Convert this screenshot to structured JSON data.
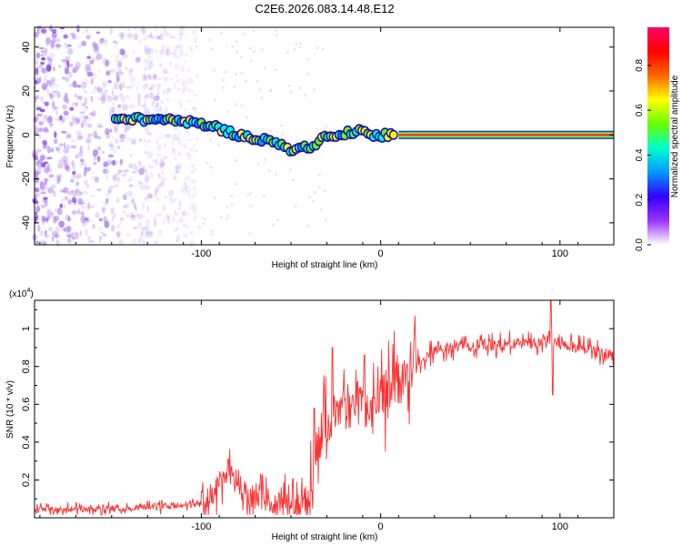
{
  "title": "C2E6.2026.083.14.48.E12",
  "chart_data": [
    {
      "type": "heatmap",
      "id": "spectrogram",
      "xlabel": "Height of straight line (km)",
      "ylabel": "Frequency (Hz)",
      "xlim": [
        -193,
        130
      ],
      "ylim": [
        -50,
        49
      ],
      "xticks": [
        -100,
        0,
        100
      ],
      "xtick_labels": [
        "-100",
        "0",
        "100"
      ],
      "yticks": [
        -40,
        -20,
        0,
        20,
        40
      ],
      "ytick_labels": [
        "-40",
        "-20",
        "0",
        "20",
        "40"
      ],
      "track": {
        "x": [
          -148,
          -140,
          -130,
          -120,
          -110,
          -100,
          -90,
          -80,
          -70,
          -60,
          -55,
          -50,
          -45,
          -40,
          -35,
          -30,
          -25,
          -20,
          -15,
          -10,
          -5,
          0,
          5,
          10,
          130
        ],
        "y": [
          8,
          7.5,
          7,
          7,
          6,
          5,
          3,
          0,
          -2,
          -3,
          -4,
          -7,
          -5,
          -6,
          -3,
          -1,
          0,
          1,
          1,
          2,
          0,
          0,
          0,
          0,
          0
        ]
      },
      "steady_line": {
        "x_start": 10,
        "x_end": 130,
        "freq": 0
      },
      "colorbar": {
        "label": "Normalized spectral amplitude",
        "range": [
          0,
          0.97
        ],
        "ticks": [
          0,
          0.2,
          0.4,
          0.6,
          0.8
        ],
        "tick_labels": [
          "0.0",
          "0.2",
          "0.4",
          "0.6",
          "0.8"
        ],
        "colors": [
          "#ffffff",
          "#9933ff",
          "#3300ff",
          "#0099ff",
          "#00ffcc",
          "#66ff00",
          "#ffff00",
          "#ff6600",
          "#ff0000",
          "#ff0066"
        ]
      }
    },
    {
      "type": "line",
      "id": "snr",
      "xlabel": "Height of straight line (km)",
      "ylabel": "SNR (10 * v/v)",
      "y_multiplier": "(x10",
      "y_multiplier_exp": "4",
      "y_multiplier_close": ")",
      "xlim": [
        -193,
        130
      ],
      "ylim": [
        0,
        1.15
      ],
      "xticks": [
        -100,
        0,
        100
      ],
      "xtick_labels": [
        "-100",
        "0",
        "100"
      ],
      "yticks": [
        0.2,
        0.4,
        0.6,
        0.8,
        1.0
      ],
      "ytick_labels": [
        "0.2",
        "0.4",
        "0.6",
        "0.8",
        "1"
      ],
      "color": "#ff3030",
      "envelope": {
        "x": [
          -193,
          -150,
          -120,
          -100,
          -95,
          -90,
          -85,
          -80,
          -75,
          -70,
          -60,
          -50,
          -45,
          -40,
          -38,
          -35,
          -30,
          -25,
          -20,
          -10,
          0,
          10,
          20,
          30,
          40,
          50,
          60,
          70,
          80,
          90,
          95,
          100,
          110,
          120,
          130
        ],
        "y": [
          0.04,
          0.05,
          0.06,
          0.08,
          0.12,
          0.18,
          0.22,
          0.2,
          0.12,
          0.1,
          0.09,
          0.08,
          0.07,
          0.06,
          0.2,
          0.42,
          0.55,
          0.52,
          0.58,
          0.6,
          0.62,
          0.72,
          0.82,
          0.88,
          0.9,
          0.91,
          0.91,
          0.92,
          0.92,
          0.93,
          0.95,
          0.92,
          0.9,
          0.88,
          0.86
        ]
      },
      "spikes": [
        {
          "x": -85,
          "y": 0.31
        },
        {
          "x": -37,
          "y": 0.58
        },
        {
          "x": -27,
          "y": 0.9
        },
        {
          "x": -9,
          "y": 0.86
        },
        {
          "x": 95,
          "y": 1.15
        },
        {
          "x": 96,
          "y": 0.65
        }
      ]
    }
  ]
}
